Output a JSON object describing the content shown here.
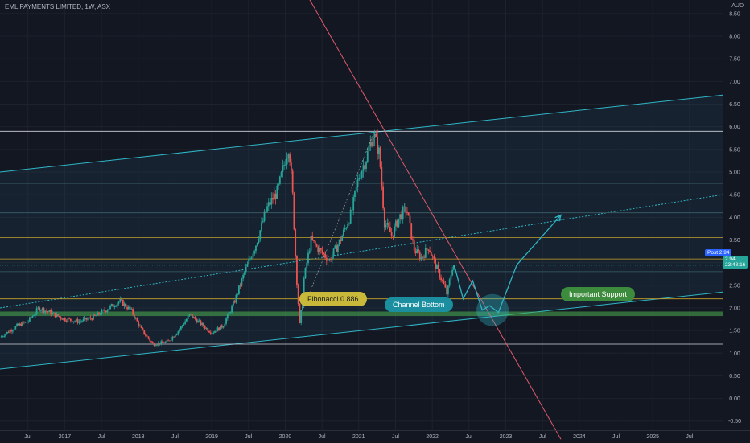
{
  "header": {
    "title": "EML PAYMENTS LIMITED, 1W, ASX",
    "currency": "AUD"
  },
  "annotations": {
    "fib": "Fibonacci 0.886",
    "channel": "Channel Bottom",
    "support": "Important Support"
  },
  "price_tags": {
    "post_label": "Post",
    "post_value": "2.94",
    "last_value": "2.94",
    "countdown": "23:48:16"
  },
  "colors": {
    "background": "#131722",
    "up": "#26a69a",
    "down": "#ef5350",
    "fib_label": "#c8b93a",
    "channel_label": "#1b8ea0",
    "support_label": "#3d8b3d",
    "trendline": "#e05a6a"
  },
  "chart_data": {
    "type": "candlestick",
    "title": "EML PAYMENTS LIMITED, 1W, ASX",
    "y_ticks": [
      8.5,
      8.0,
      7.5,
      7.0,
      6.5,
      6.0,
      5.5,
      5.0,
      4.5,
      4.0,
      3.5,
      3.0,
      2.5,
      2.0,
      1.5,
      1.0,
      0.5,
      0.0,
      -0.5
    ],
    "ylim": [
      -0.7,
      8.8
    ],
    "x_ticks": [
      "Jul",
      "2017",
      "Jul",
      "2018",
      "Jul",
      "2019",
      "Jul",
      "2020",
      "Jul",
      "2021",
      "Jul",
      "2022",
      "Jul",
      "2023",
      "Jul",
      "2024",
      "Jul",
      "2025",
      "Jul"
    ],
    "x_tick_years": [
      2016.5,
      2017,
      2017.5,
      2018,
      2018.5,
      2019,
      2019.5,
      2020,
      2020.5,
      2021,
      2021.5,
      2022,
      2022.5,
      2023,
      2023.5,
      2024,
      2024.5,
      2025,
      2025.5
    ],
    "xlim": [
      2016.12,
      2025.95
    ],
    "price_path": [
      [
        2016.12,
        1.35
      ],
      [
        2016.35,
        1.6
      ],
      [
        2016.5,
        1.7
      ],
      [
        2016.65,
        2.0
      ],
      [
        2016.8,
        1.9
      ],
      [
        2017.0,
        1.75
      ],
      [
        2017.2,
        1.7
      ],
      [
        2017.4,
        1.8
      ],
      [
        2017.6,
        2.0
      ],
      [
        2017.75,
        2.15
      ],
      [
        2017.9,
        1.95
      ],
      [
        2018.05,
        1.5
      ],
      [
        2018.2,
        1.2
      ],
      [
        2018.4,
        1.25
      ],
      [
        2018.55,
        1.5
      ],
      [
        2018.7,
        1.85
      ],
      [
        2018.85,
        1.65
      ],
      [
        2019.0,
        1.45
      ],
      [
        2019.15,
        1.6
      ],
      [
        2019.3,
        2.1
      ],
      [
        2019.45,
        2.8
      ],
      [
        2019.6,
        3.4
      ],
      [
        2019.75,
        4.2
      ],
      [
        2019.9,
        4.6
      ],
      [
        2020.05,
        5.6
      ],
      [
        2020.1,
        4.5
      ],
      [
        2020.15,
        2.8
      ],
      [
        2020.2,
        1.55
      ],
      [
        2020.25,
        2.6
      ],
      [
        2020.35,
        3.5
      ],
      [
        2020.45,
        3.3
      ],
      [
        2020.6,
        3.05
      ],
      [
        2020.75,
        3.5
      ],
      [
        2020.9,
        4.1
      ],
      [
        2021.0,
        4.9
      ],
      [
        2021.1,
        5.3
      ],
      [
        2021.2,
        5.85
      ],
      [
        2021.28,
        5.4
      ],
      [
        2021.35,
        3.9
      ],
      [
        2021.45,
        3.6
      ],
      [
        2021.55,
        4.0
      ],
      [
        2021.65,
        4.2
      ],
      [
        2021.75,
        3.3
      ],
      [
        2021.85,
        3.1
      ],
      [
        2021.95,
        3.35
      ],
      [
        2022.05,
        2.9
      ],
      [
        2022.15,
        2.55
      ],
      [
        2022.2,
        2.3
      ],
      [
        2022.28,
        2.95
      ],
      [
        2022.3,
        2.94
      ]
    ],
    "projection": [
      [
        2022.3,
        2.94
      ],
      [
        2022.42,
        2.2
      ],
      [
        2022.55,
        2.6
      ],
      [
        2022.68,
        1.95
      ],
      [
        2022.78,
        2.05
      ],
      [
        2022.9,
        1.9
      ],
      [
        2023.15,
        2.95
      ],
      [
        2023.75,
        4.05
      ]
    ],
    "horizontal_levels": [
      {
        "price": 5.9,
        "color": "#d1d4dc"
      },
      {
        "price": 4.75,
        "color": "#3b5f6a"
      },
      {
        "price": 4.1,
        "color": "#3b5f6a"
      },
      {
        "price": 3.55,
        "color": "#c9a227"
      },
      {
        "price": 3.08,
        "color": "#c9a227"
      },
      {
        "price": 2.95,
        "color": "#c9a227"
      },
      {
        "price": 2.8,
        "color": "#3b5f6a"
      },
      {
        "price": 2.2,
        "color": "#c9a227"
      },
      {
        "price": 1.2,
        "color": "#d1d4dc"
      }
    ],
    "support_band": [
      1.82,
      1.92
    ],
    "channel_upper": [
      [
        2016.12,
        5.0
      ],
      [
        2025.95,
        6.7
      ]
    ],
    "channel_mid": [
      [
        2016.12,
        2.0
      ],
      [
        2025.95,
        4.5
      ]
    ],
    "channel_lower": [
      [
        2016.12,
        0.65
      ],
      [
        2025.95,
        2.35
      ]
    ],
    "diagonal_downtrend": [
      [
        2020.3,
        8.9
      ],
      [
        2023.75,
        -0.9
      ]
    ],
    "last_price": 2.94
  }
}
